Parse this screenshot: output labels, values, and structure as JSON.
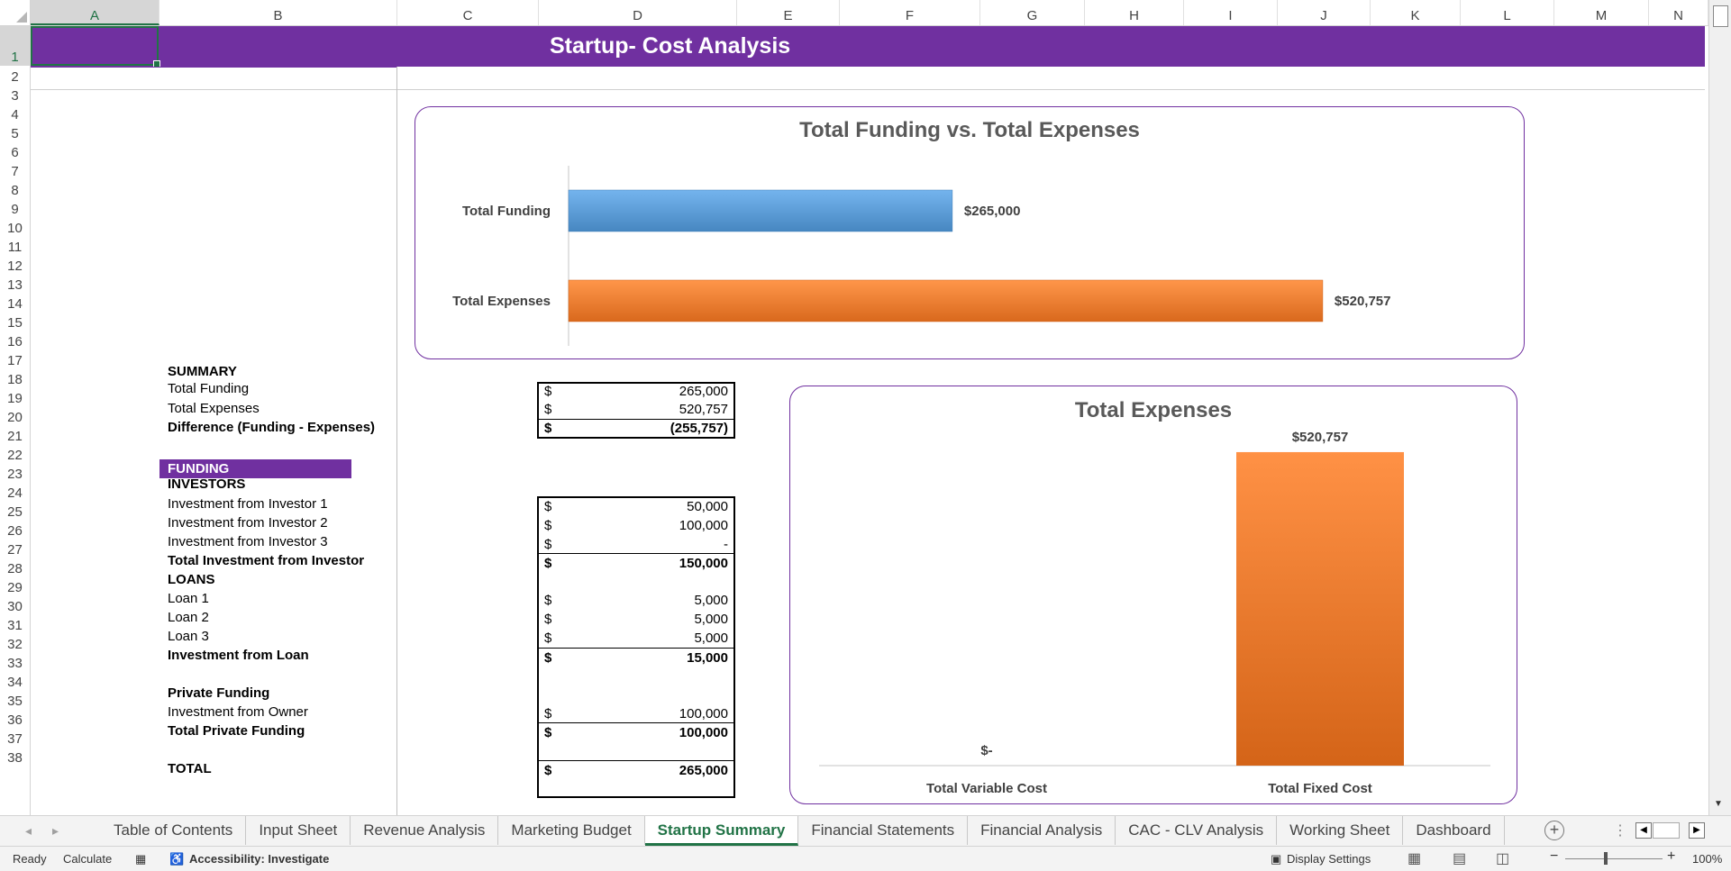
{
  "columns": [
    "A",
    "B",
    "C",
    "D",
    "E",
    "F",
    "G",
    "H",
    "I",
    "J",
    "K",
    "L",
    "M",
    "N"
  ],
  "rows": [
    "1",
    "2",
    "3",
    "4",
    "5",
    "6",
    "7",
    "8",
    "9",
    "10",
    "11",
    "12",
    "13",
    "14",
    "15",
    "16",
    "17",
    "18",
    "19",
    "20",
    "21",
    "22",
    "23",
    "24",
    "25",
    "26",
    "27",
    "28",
    "29",
    "30",
    "31",
    "32",
    "33",
    "34",
    "35",
    "36",
    "37",
    "38"
  ],
  "sheet_title": "Startup- Cost Analysis",
  "summary": {
    "header": "SUMMARY",
    "total_funding_label": "Total Funding",
    "total_expenses_label": "Total Expenses",
    "difference_label": "Difference (Funding - Expenses)",
    "total_funding_value": "265,000",
    "total_expenses_value": "520,757",
    "difference_value": "(255,757)"
  },
  "currency": "$",
  "funding": {
    "header": "FUNDING",
    "investors_header": "INVESTORS",
    "investor1_label": "Investment from Investor 1",
    "investor2_label": "Investment from Investor 2",
    "investor3_label": "Investment from Investor 3",
    "total_investor_label": "Total Investment from Investor",
    "investor1_value": "50,000",
    "investor2_value": "100,000",
    "investor3_value": "-",
    "total_investor_value": "150,000",
    "loans_header": "LOANS",
    "loan1_label": "Loan 1",
    "loan2_label": "Loan 2",
    "loan3_label": "Loan 3",
    "loan_total_label": "Investment from Loan",
    "loan1_value": "5,000",
    "loan2_value": "5,000",
    "loan3_value": "5,000",
    "loan_total_value": "15,000",
    "private_header": "Private Funding",
    "owner_label": "Investment from Owner",
    "private_total_label": "Total Private Funding",
    "owner_value": "100,000",
    "private_total_value": "100,000",
    "total_label": "TOTAL",
    "total_value": "265,000"
  },
  "chart_data": [
    {
      "type": "bar",
      "orientation": "horizontal",
      "title": "Total Funding vs. Total Expenses",
      "categories": [
        "Total Funding",
        "Total Expenses"
      ],
      "values": [
        265000,
        520757
      ],
      "data_labels": [
        "$265,000",
        "$520,757"
      ],
      "colors": [
        "#5b9bd5",
        "#ed7d31"
      ],
      "xlim": [
        0,
        560000
      ]
    },
    {
      "type": "bar",
      "orientation": "vertical",
      "title": "Total Expenses",
      "categories": [
        "Total Variable Cost",
        "Total Fixed Cost"
      ],
      "values": [
        0,
        520757
      ],
      "data_labels": [
        "$-",
        "$520,757"
      ],
      "colors": [
        "#ed7d31",
        "#ed7d31"
      ],
      "ylim": [
        0,
        600000
      ]
    }
  ],
  "sheet_tabs": [
    "Table of Contents",
    "Input Sheet",
    "Revenue Analysis",
    "Marketing Budget",
    "Startup Summary",
    "Financial Statements",
    "Financial Analysis",
    "CAC - CLV Analysis",
    "Working Sheet",
    "Dashboard"
  ],
  "active_tab": "Startup Summary",
  "status": {
    "ready": "Ready",
    "calculate": "Calculate",
    "accessibility": "Accessibility: Investigate",
    "display_settings": "Display Settings",
    "zoom": "100%"
  },
  "colors": {
    "banner": "#7030a0",
    "excel_green": "#217346",
    "funding_bar": "#5b9bd5",
    "expense_bar": "#ed7d31"
  }
}
